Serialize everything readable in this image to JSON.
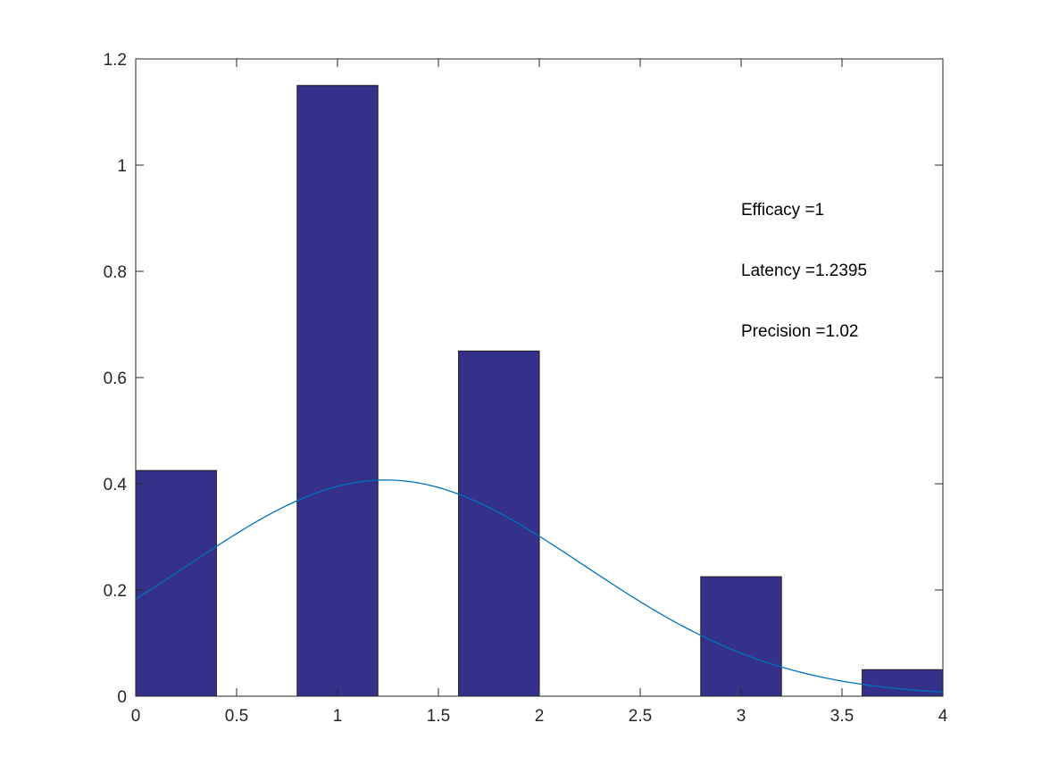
{
  "chart_data": {
    "type": "bar",
    "title": "",
    "xlabel": "",
    "ylabel": "",
    "xlim": [
      0,
      4
    ],
    "ylim": [
      0,
      1.2
    ],
    "xticks": [
      "0",
      "0.5",
      "1",
      "1.5",
      "2",
      "2.5",
      "3",
      "3.5",
      "4"
    ],
    "yticks": [
      "0",
      "0.2",
      "0.4",
      "0.6",
      "0.8",
      "1",
      "1.2"
    ],
    "grid": false,
    "legend": "none",
    "bars": {
      "bin_edges": [
        [
          0,
          0.4
        ],
        [
          0.8,
          1.2
        ],
        [
          1.6,
          2.0
        ],
        [
          2.8,
          3.2
        ],
        [
          3.6,
          4.0
        ]
      ],
      "values": [
        0.425,
        1.15,
        0.65,
        0.225,
        0.05
      ],
      "color": "#35308a"
    },
    "curve": {
      "type": "normal-pdf",
      "mean": 1.2395,
      "std": 0.98,
      "x_range": [
        0,
        4
      ],
      "color": "#0072bd"
    },
    "annotations": [
      "Efficacy =1",
      "Latency =1.2395",
      "Precision =1.02"
    ]
  }
}
